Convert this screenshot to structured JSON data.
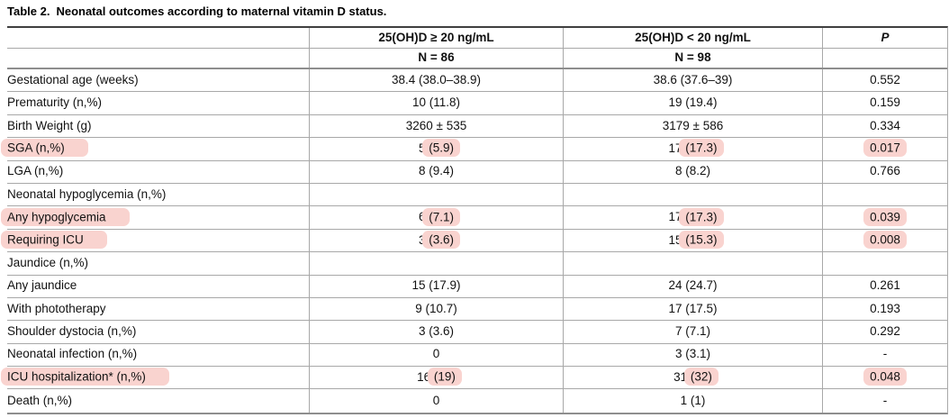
{
  "title": {
    "prefix": "Table 2.",
    "text": "Neonatal outcomes according to maternal vitamin D status."
  },
  "colors": {
    "highlight": "#f9d3cf",
    "grid_line": "#a8a8a8",
    "heavy_line": "#8e8e8e",
    "top_border": "#404040",
    "text": "#111111"
  },
  "table": {
    "columns": [
      {
        "label": "",
        "sub": ""
      },
      {
        "label": "25(OH)D ≥ 20 ng/mL",
        "sub": "N = 86"
      },
      {
        "label": "25(OH)D < 20 ng/mL",
        "sub": "N = 98"
      },
      {
        "label": "P",
        "sub": ""
      }
    ],
    "rows": [
      {
        "cells": [
          "Gestational age (weeks)",
          "38.4 (38.0–38.9)",
          "38.6 (37.6–39)",
          "0.552"
        ],
        "marks": [
          null,
          null,
          null,
          null
        ]
      },
      {
        "cells": [
          "Prematurity (n,%)",
          "10 (11.8)",
          "19 (19.4)",
          "0.159"
        ],
        "marks": [
          null,
          null,
          null,
          null
        ]
      },
      {
        "cells": [
          "Birth Weight (g)",
          "3260 ± 535",
          "3179 ± 586",
          "0.334"
        ],
        "marks": [
          null,
          null,
          null,
          null
        ]
      },
      {
        "cells": [
          "SGA (n,%)",
          "5 (5.9)",
          "17 (17.3)",
          "0.017"
        ],
        "marks": [
          "SGA (n,%)",
          "(5.9)",
          "(17.3)",
          "0.017"
        ]
      },
      {
        "cells": [
          "LGA (n,%)",
          "8 (9.4)",
          "8 (8.2)",
          "0.766"
        ],
        "marks": [
          null,
          null,
          null,
          null
        ]
      },
      {
        "cells": [
          "Neonatal hypoglycemia (n,%)",
          "",
          "",
          ""
        ],
        "marks": [
          null,
          null,
          null,
          null
        ]
      },
      {
        "cells": [
          "Any hypoglycemia",
          "6 (7.1)",
          "17 (17.3)",
          "0.039"
        ],
        "marks": [
          "Any hypoglycemia",
          "(7.1)",
          "(17.3)",
          "0.039"
        ]
      },
      {
        "cells": [
          "Requiring ICU",
          "3 (3.6)",
          "15 (15.3)",
          "0.008"
        ],
        "marks": [
          "Requiring ICU",
          "(3.6)",
          "(15.3)",
          "0.008"
        ]
      },
      {
        "cells": [
          "Jaundice (n,%)",
          "",
          "",
          ""
        ],
        "marks": [
          null,
          null,
          null,
          null
        ]
      },
      {
        "cells": [
          "Any jaundice",
          "15 (17.9)",
          "24 (24.7)",
          "0.261"
        ],
        "marks": [
          null,
          null,
          null,
          null
        ]
      },
      {
        "cells": [
          "With phototherapy",
          "9 (10.7)",
          "17 (17.5)",
          "0.193"
        ],
        "marks": [
          null,
          null,
          null,
          null
        ]
      },
      {
        "cells": [
          "Shoulder dystocia (n,%)",
          "3 (3.6)",
          "7 (7.1)",
          "0.292"
        ],
        "marks": [
          null,
          null,
          null,
          null
        ]
      },
      {
        "cells": [
          "Neonatal infection (n,%)",
          "0",
          "3 (3.1)",
          "-"
        ],
        "marks": [
          null,
          null,
          null,
          null
        ]
      },
      {
        "cells": [
          "ICU hospitalization* (n,%)",
          "16 (19)",
          "31 (32)",
          "0.048"
        ],
        "marks": [
          "ICU hospitalization* (n,%)",
          "(19)",
          "(32)",
          "0.048"
        ]
      },
      {
        "cells": [
          "Death (n,%)",
          "0",
          "1 (1)",
          "-"
        ],
        "marks": [
          null,
          null,
          null,
          null
        ]
      }
    ]
  }
}
